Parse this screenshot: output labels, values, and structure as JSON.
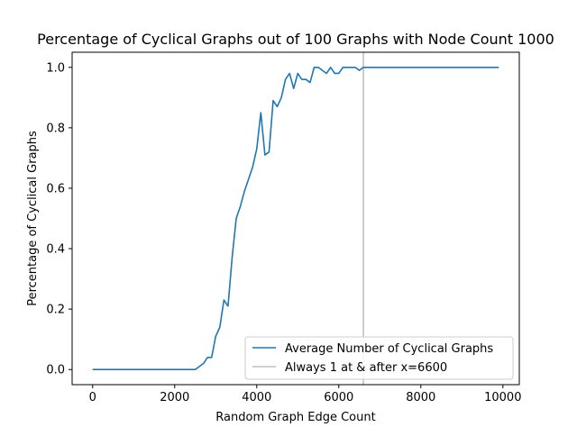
{
  "chart_data": {
    "type": "line",
    "title": "Percentage of Cyclical Graphs out of 100 Graphs with Node Count 1000",
    "xlabel": "Random Graph Edge Count",
    "ylabel": "Percentage of Cyclical Graphs",
    "xlim": [
      -500,
      10400
    ],
    "ylim": [
      -0.05,
      1.05
    ],
    "xticks": [
      0,
      2000,
      4000,
      6000,
      8000,
      10000
    ],
    "yticks": [
      0.0,
      0.2,
      0.4,
      0.6,
      0.8,
      1.0
    ],
    "xtick_labels": [
      "0",
      "2000",
      "4000",
      "6000",
      "8000",
      "10000"
    ],
    "ytick_labels": [
      "0.0",
      "0.2",
      "0.4",
      "0.6",
      "0.8",
      "1.0"
    ],
    "grid": false,
    "legend_position": "lower-right",
    "series": [
      {
        "name": "Average Number of Cyclical Graphs",
        "color": "#1f77b4",
        "x": [
          0,
          100,
          200,
          300,
          400,
          500,
          600,
          700,
          800,
          900,
          1000,
          1100,
          1200,
          1300,
          1400,
          1500,
          1600,
          1700,
          1800,
          1900,
          2000,
          2100,
          2200,
          2300,
          2400,
          2500,
          2600,
          2700,
          2800,
          2900,
          3000,
          3100,
          3200,
          3300,
          3400,
          3500,
          3600,
          3700,
          3800,
          3900,
          4000,
          4100,
          4200,
          4300,
          4400,
          4500,
          4600,
          4700,
          4800,
          4900,
          5000,
          5100,
          5200,
          5300,
          5400,
          5500,
          5600,
          5700,
          5800,
          5900,
          6000,
          6100,
          6200,
          6300,
          6400,
          6500,
          6600,
          6700,
          6800,
          6900,
          7000,
          7100,
          7200,
          7300,
          7400,
          7500,
          7600,
          7700,
          7800,
          7900,
          8000,
          8100,
          8200,
          8300,
          8400,
          8500,
          8600,
          8700,
          8800,
          8900,
          9000,
          9100,
          9200,
          9300,
          9400,
          9500,
          9600,
          9700,
          9800,
          9900
        ],
        "y": [
          0,
          0,
          0,
          0,
          0,
          0,
          0,
          0,
          0,
          0,
          0,
          0,
          0,
          0,
          0,
          0,
          0,
          0,
          0,
          0,
          0,
          0,
          0,
          0,
          0,
          0,
          0.01,
          0.02,
          0.04,
          0.04,
          0.11,
          0.14,
          0.23,
          0.21,
          0.37,
          0.5,
          0.54,
          0.59,
          0.63,
          0.67,
          0.73,
          0.85,
          0.71,
          0.72,
          0.89,
          0.87,
          0.9,
          0.96,
          0.98,
          0.93,
          0.98,
          0.96,
          0.96,
          0.95,
          1.0,
          1.0,
          0.99,
          0.98,
          1.0,
          0.98,
          0.98,
          1.0,
          1.0,
          1.0,
          1.0,
          0.99,
          1.0,
          1.0,
          1.0,
          1.0,
          1.0,
          1.0,
          1.0,
          1.0,
          1.0,
          1.0,
          1.0,
          1.0,
          1.0,
          1.0,
          1.0,
          1.0,
          1.0,
          1.0,
          1.0,
          1.0,
          1.0,
          1.0,
          1.0,
          1.0,
          1.0,
          1.0,
          1.0,
          1.0,
          1.0,
          1.0,
          1.0,
          1.0,
          1.0,
          1.0
        ]
      },
      {
        "name": "Always 1 at & after x=6600",
        "color": "#c0c0c0",
        "type": "vline",
        "x": 6600
      }
    ]
  }
}
